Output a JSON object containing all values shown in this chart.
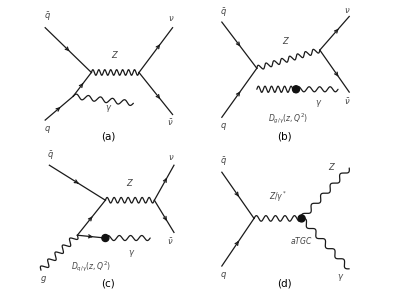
{
  "bg_color": "#ffffff",
  "line_color": "#1a1a1a",
  "label_color": "#444444",
  "fig_width": 3.93,
  "fig_height": 2.94,
  "dpi": 100,
  "caption_a": "(a)",
  "caption_b": "(b)",
  "caption_c": "(c)",
  "caption_d": "(d)",
  "label_font_size": 6.0,
  "caption_font_size": 7.5
}
